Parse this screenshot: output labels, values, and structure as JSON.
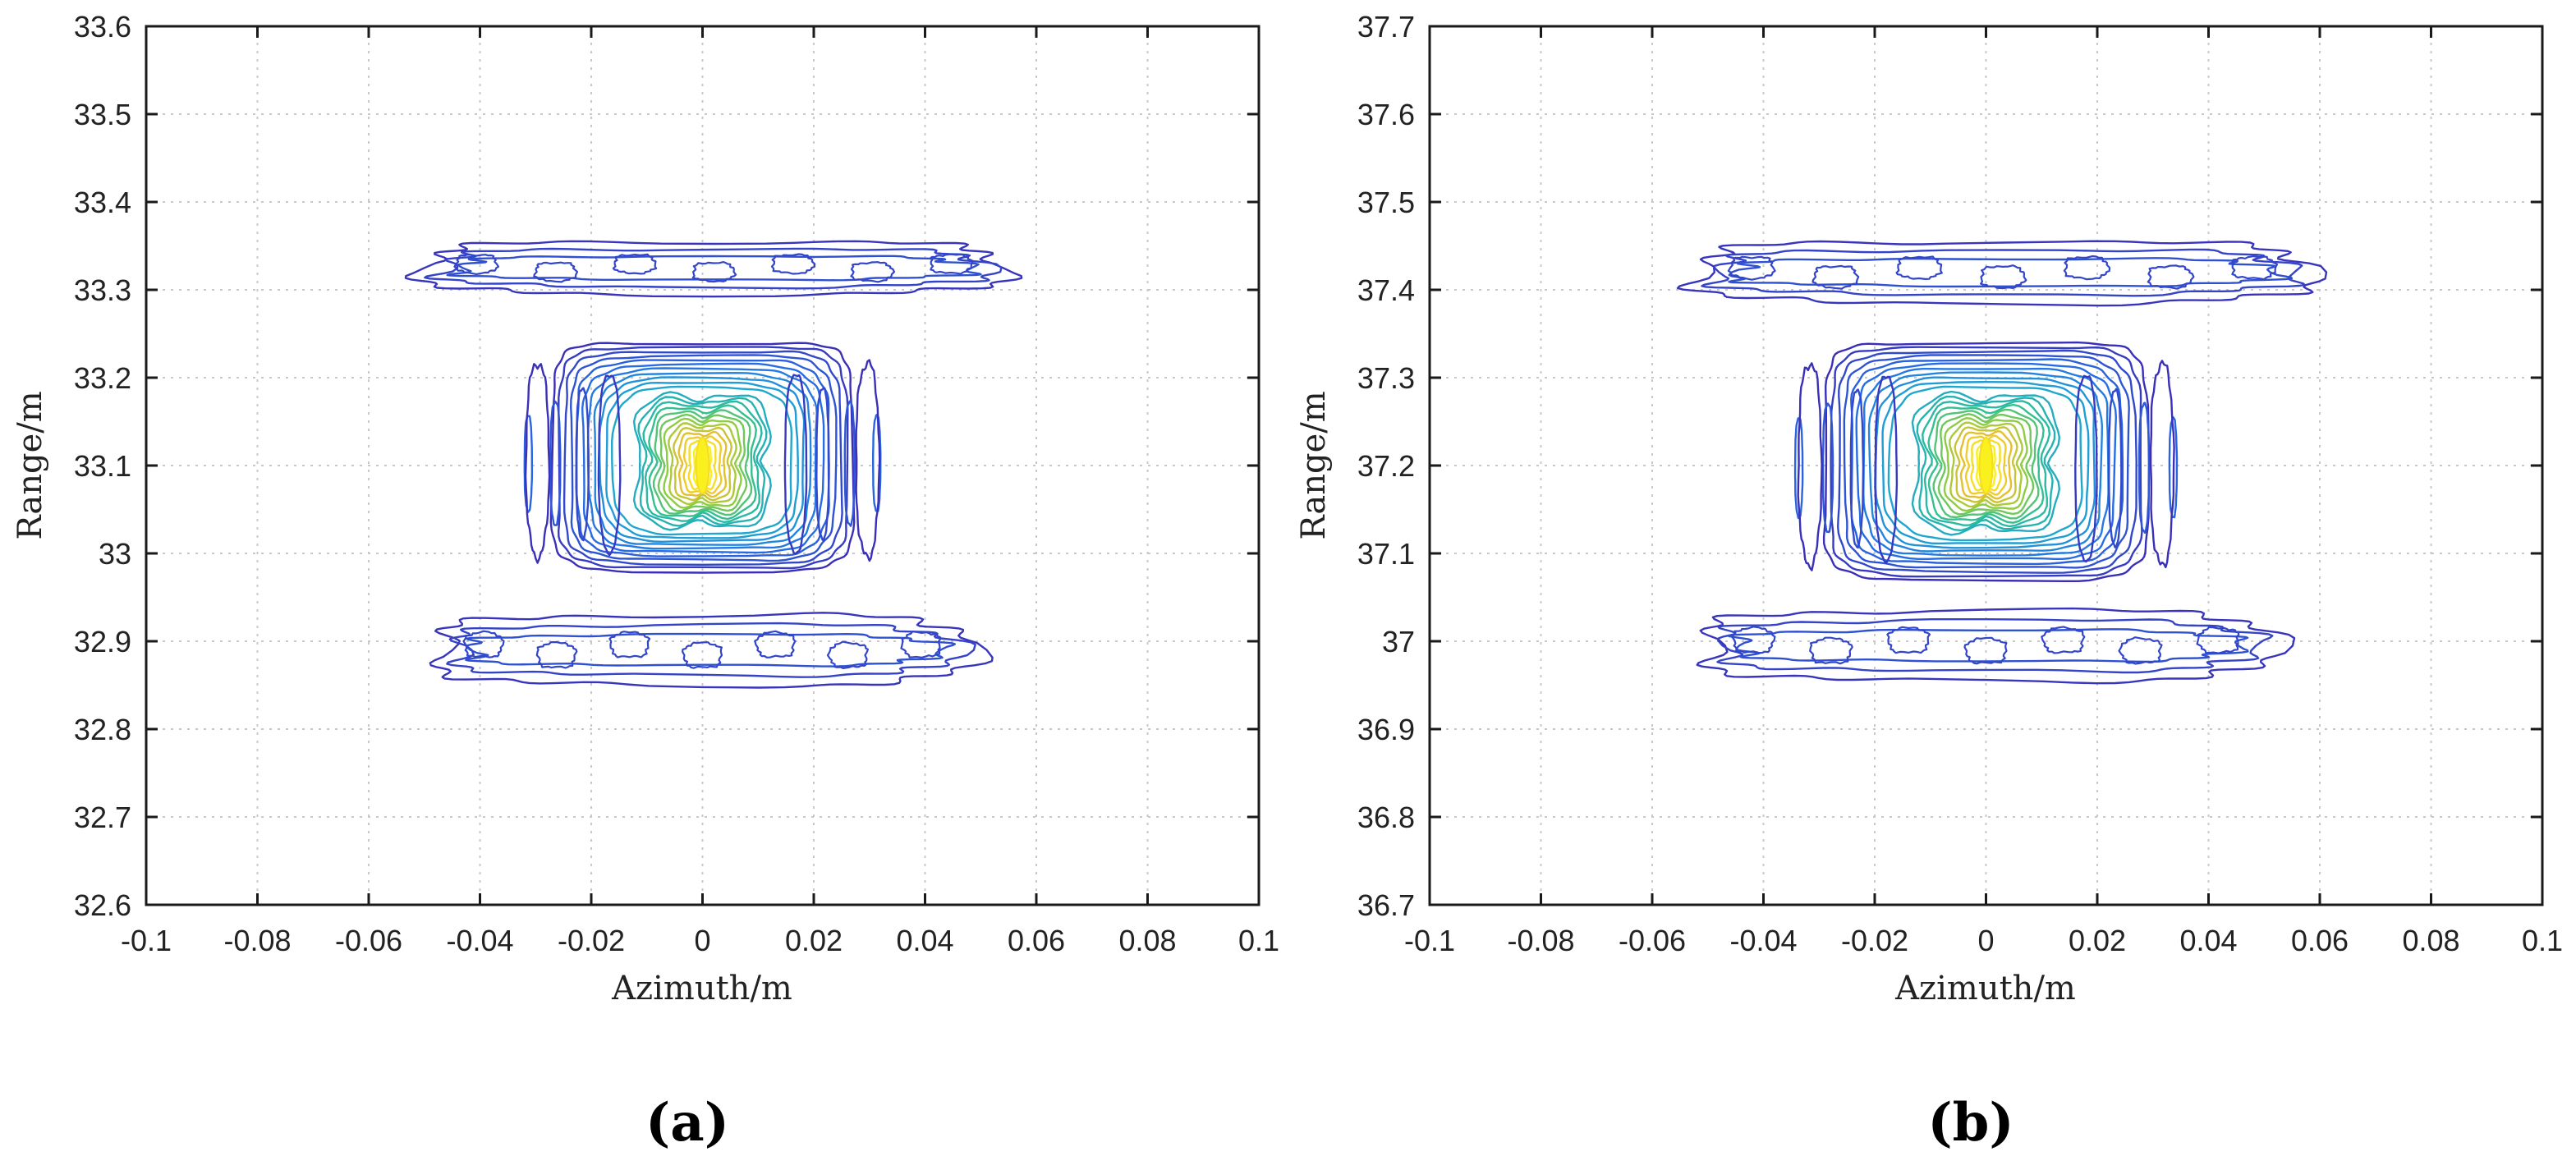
{
  "chart_data": [
    {
      "type": "contour",
      "panel": "(a)",
      "xlabel": "Azimuth/m",
      "ylabel": "Range/m",
      "xlim": [
        -0.1,
        0.1
      ],
      "ylim": [
        32.6,
        33.6
      ],
      "xticks": [
        -0.1,
        -0.08,
        -0.06,
        -0.04,
        -0.02,
        0,
        0.02,
        0.04,
        0.06,
        0.08,
        0.1
      ],
      "xtick_labels": [
        "-0.1",
        "-0.08",
        "-0.06",
        "-0.04",
        "-0.02",
        "0",
        "0.02",
        "0.04",
        "0.06",
        "0.08",
        "0.1"
      ],
      "yticks": [
        32.6,
        32.7,
        32.8,
        32.9,
        33.0,
        33.1,
        33.2,
        33.3,
        33.4,
        33.5,
        33.6
      ],
      "ytick_labels": [
        "32.6",
        "32.7",
        "32.8",
        "32.9",
        "33",
        "33.1",
        "33.2",
        "33.3",
        "33.4",
        "33.5",
        "33.6"
      ],
      "grid": true,
      "peak": {
        "azimuth": 0.0,
        "range": 33.1
      },
      "main_lobe": {
        "x_half_width": 0.027,
        "range_min": 32.98,
        "range_max": 33.24
      },
      "sidelobes": [
        {
          "center_azimuth": 0.002,
          "center_range": 33.325,
          "x_half_width": 0.052,
          "range_half_height": 0.03
        },
        {
          "center_azimuth": 0.0,
          "center_range": 32.89,
          "x_half_width": 0.048,
          "range_half_height": 0.04
        }
      ],
      "levels": 24
    },
    {
      "type": "contour",
      "panel": "(b)",
      "xlabel": "Azimuth/m",
      "ylabel": "Range/m",
      "xlim": [
        -0.1,
        0.1
      ],
      "ylim": [
        36.7,
        37.7
      ],
      "xticks": [
        -0.1,
        -0.08,
        -0.06,
        -0.04,
        -0.02,
        0,
        0.02,
        0.04,
        0.06,
        0.08,
        0.1
      ],
      "xtick_labels": [
        "-0.1",
        "-0.08",
        "-0.06",
        "-0.04",
        "-0.02",
        "0",
        "0.02",
        "0.04",
        "0.06",
        "0.08",
        "0.1"
      ],
      "yticks": [
        36.7,
        36.8,
        36.9,
        37.0,
        37.1,
        37.2,
        37.3,
        37.4,
        37.5,
        37.6,
        37.7
      ],
      "ytick_labels": [
        "36.7",
        "36.8",
        "36.9",
        "37",
        "37.1",
        "37.2",
        "37.3",
        "37.4",
        "37.5",
        "37.6",
        "37.7"
      ],
      "grid": true,
      "peak": {
        "azimuth": 0.0,
        "range": 37.2
      },
      "main_lobe": {
        "x_half_width": 0.029,
        "range_min": 37.07,
        "range_max": 37.34
      },
      "sidelobes": [
        {
          "center_azimuth": 0.003,
          "center_range": 37.42,
          "x_half_width": 0.055,
          "range_half_height": 0.035
        },
        {
          "center_azimuth": 0.0,
          "center_range": 36.995,
          "x_half_width": 0.051,
          "range_half_height": 0.04
        }
      ],
      "levels": 24
    }
  ],
  "colors": {
    "low": "#3a2fb8",
    "mid_low": "#2a86e0",
    "mid": "#20b8b0",
    "mid_high": "#8ccd3c",
    "high": "#f2c22a",
    "peak": "#f8f020"
  }
}
